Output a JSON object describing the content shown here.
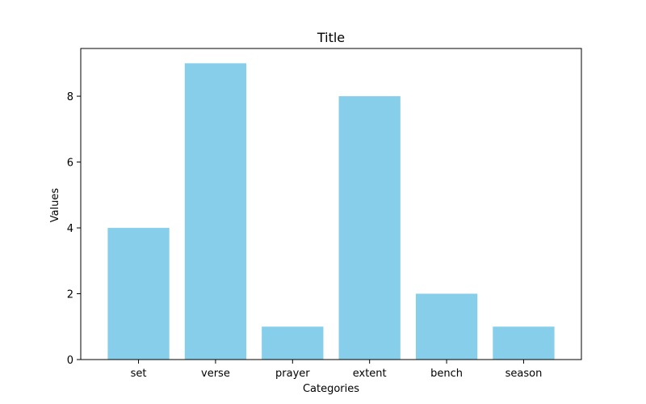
{
  "chart_data": {
    "type": "bar",
    "title": "Title",
    "xlabel": "Categories",
    "ylabel": "Values",
    "categories": [
      "set",
      "verse",
      "prayer",
      "extent",
      "bench",
      "season"
    ],
    "values": [
      4,
      9,
      1,
      8,
      2,
      1
    ],
    "ylim": [
      0,
      9.45
    ],
    "yticks": [
      0,
      2,
      4,
      6,
      8
    ],
    "bar_color": "#87CEEB",
    "grid": false,
    "legend": "none"
  }
}
